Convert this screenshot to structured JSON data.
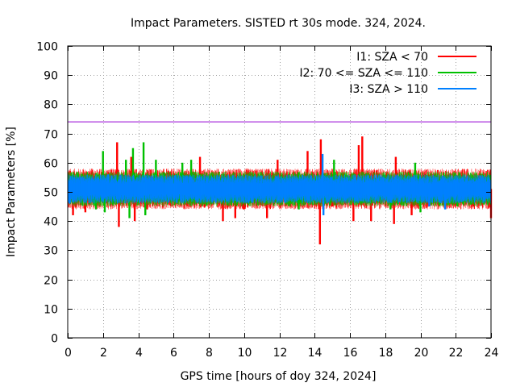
{
  "chart_data": {
    "type": "line",
    "title": "Impact Parameters. SISTED rt 30s mode. 324, 2024.",
    "xlabel": "GPS time [hours of doy 324, 2024]",
    "ylabel": "Impact Parameters [%]",
    "xlim": [
      0,
      24
    ],
    "ylim": [
      0,
      100
    ],
    "xticks": [
      "0",
      "2",
      "4",
      "6",
      "8",
      "10",
      "12",
      "14",
      "16",
      "18",
      "20",
      "22",
      "24"
    ],
    "yticks": [
      "0",
      "10",
      "20",
      "30",
      "40",
      "50",
      "60",
      "70",
      "80",
      "90",
      "100"
    ],
    "grid": true,
    "legend_position": "top-right",
    "reference_line": {
      "y": 74,
      "color": "#9400d3"
    },
    "series": [
      {
        "name": "I1: SZA < 70",
        "color": "#ff0000",
        "band": [
          44,
          58
        ],
        "spikes": [
          [
            0.3,
            42
          ],
          [
            1.0,
            43
          ],
          [
            2.8,
            67
          ],
          [
            2.9,
            38
          ],
          [
            3.6,
            62
          ],
          [
            3.8,
            40
          ],
          [
            4.5,
            44
          ],
          [
            7.5,
            62
          ],
          [
            8.8,
            40
          ],
          [
            9.5,
            41
          ],
          [
            10.0,
            44
          ],
          [
            11.3,
            41
          ],
          [
            11.9,
            61
          ],
          [
            13.6,
            64
          ],
          [
            14.3,
            32
          ],
          [
            14.35,
            68
          ],
          [
            15.0,
            45
          ],
          [
            16.2,
            40
          ],
          [
            16.5,
            66
          ],
          [
            16.7,
            69
          ],
          [
            17.2,
            40
          ],
          [
            18.5,
            39
          ],
          [
            18.6,
            62
          ],
          [
            19.5,
            42
          ],
          [
            23.0,
            45
          ],
          [
            24.0,
            41
          ]
        ]
      },
      {
        "name": "I2: 70 <= SZA <= 110",
        "color": "#00c000",
        "band": [
          45,
          57
        ],
        "spikes": [
          [
            1.6,
            44
          ],
          [
            2.0,
            64
          ],
          [
            2.1,
            43
          ],
          [
            3.3,
            61
          ],
          [
            3.5,
            41
          ],
          [
            3.7,
            65
          ],
          [
            4.3,
            67
          ],
          [
            4.4,
            42
          ],
          [
            5.0,
            61
          ],
          [
            6.5,
            60
          ],
          [
            7.0,
            61
          ],
          [
            13.1,
            44
          ],
          [
            15.1,
            61
          ],
          [
            18.3,
            44
          ],
          [
            19.7,
            60
          ],
          [
            20.0,
            43
          ],
          [
            22.1,
            45
          ]
        ]
      },
      {
        "name": "I3: SZA > 110",
        "color": "#0080ff",
        "band": [
          46,
          56
        ],
        "spikes": [
          [
            0.1,
            46
          ],
          [
            2.3,
            56
          ],
          [
            14.45,
            63
          ],
          [
            14.5,
            42
          ],
          [
            20.5,
            45
          ],
          [
            21.4,
            44
          ]
        ]
      }
    ]
  }
}
